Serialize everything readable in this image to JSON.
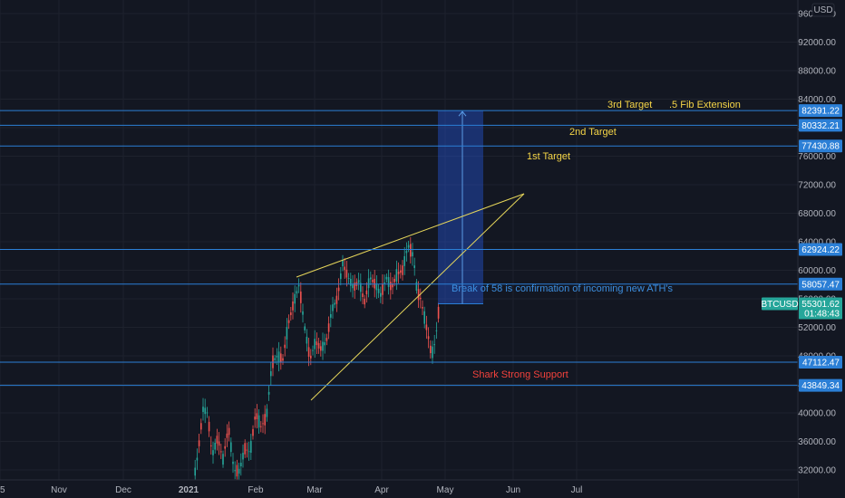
{
  "chart_data": {
    "type": "candlestick",
    "currency": "USD",
    "symbol": "BTCUSD",
    "current_price": "55301.62",
    "countdown": "01:48:43",
    "y_ticks": [
      "32000.00",
      "36000.00",
      "40000.00",
      "44000.00",
      "48000.00",
      "52000.00",
      "56000.00",
      "60000.00",
      "64000.00",
      "68000.00",
      "72000.00",
      "76000.00",
      "80000.00",
      "84000.00",
      "88000.00",
      "92000.00",
      "96000.00"
    ],
    "x_ticks": [
      {
        "label": "5",
        "bold": false
      },
      {
        "label": "Nov",
        "bold": false
      },
      {
        "label": "Dec",
        "bold": false
      },
      {
        "label": "2021",
        "bold": true
      },
      {
        "label": "Feb",
        "bold": false
      },
      {
        "label": "Mar",
        "bold": false
      },
      {
        "label": "Apr",
        "bold": false
      },
      {
        "label": "May",
        "bold": false
      },
      {
        "label": "Jun",
        "bold": false
      },
      {
        "label": "Jul",
        "bold": false
      }
    ],
    "levels": [
      {
        "value": 82391.22,
        "label": "82391.22"
      },
      {
        "value": 80332.21,
        "label": "80332.21"
      },
      {
        "value": 77430.88,
        "label": "77430.88"
      },
      {
        "value": 62924.22,
        "label": "62924.22"
      },
      {
        "value": 58057.47,
        "label": "58057.47"
      },
      {
        "value": 47112.47,
        "label": "47112.47"
      },
      {
        "value": 43849.34,
        "label": "43849.34"
      }
    ],
    "annotations": [
      {
        "text": "3rd Target",
        "color": "#f5d547"
      },
      {
        "text": ".5 Fib Extension",
        "color": "#f5d547"
      },
      {
        "text": "2nd Target",
        "color": "#f5d547"
      },
      {
        "text": "1st Target",
        "color": "#f5d547"
      },
      {
        "text": "Break of 58 is confirmation of incoming new ATH's",
        "color": "#3d8fe0"
      },
      {
        "text": "Shark Strong Support",
        "color": "#f2423c"
      }
    ],
    "colors": {
      "up": "#26a69a",
      "down": "#ef5350",
      "level": "#2b7fd6",
      "wedge": "#e6d65a",
      "background": "#131722"
    }
  }
}
